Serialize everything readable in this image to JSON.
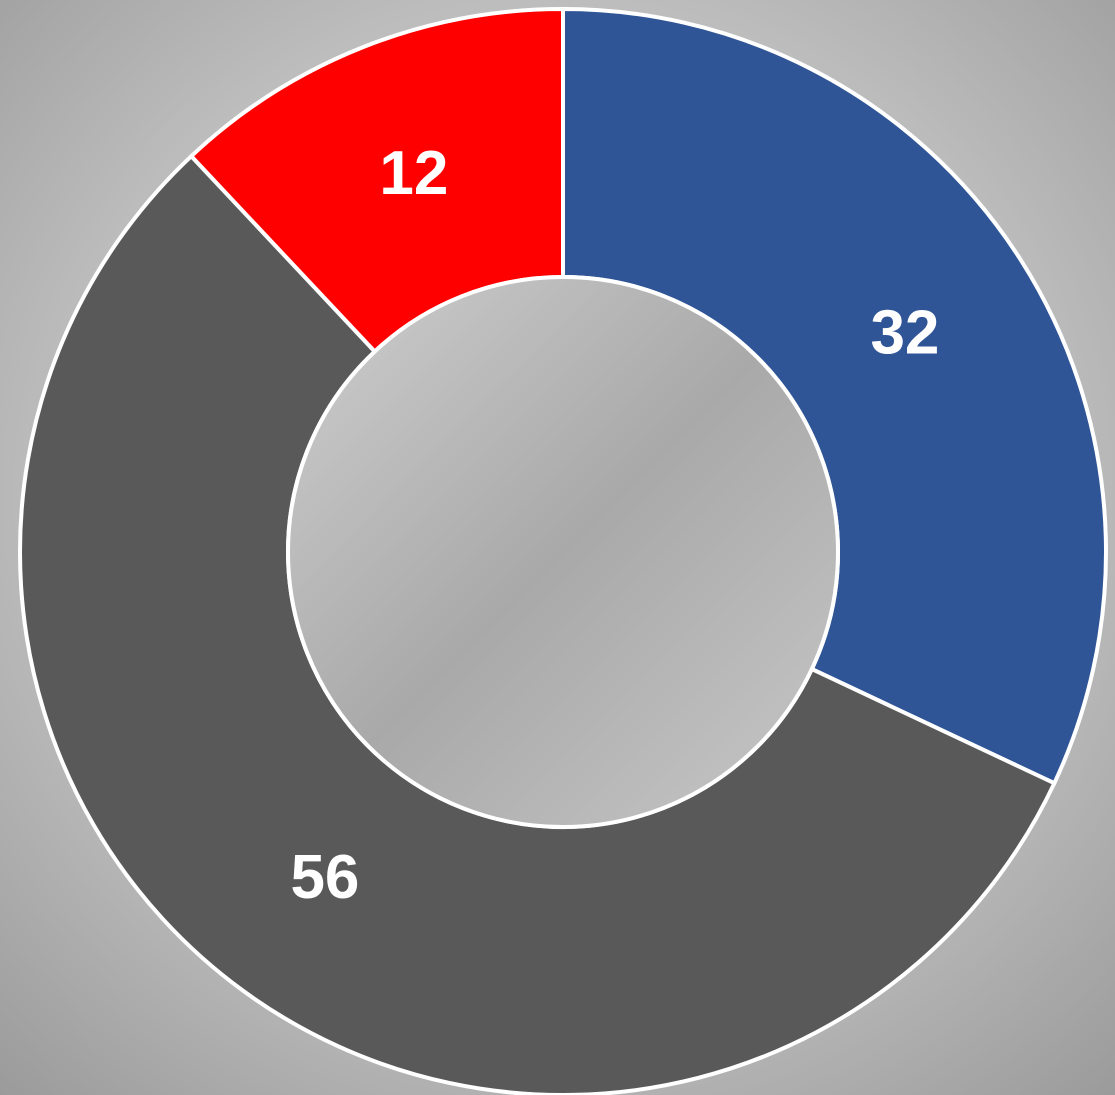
{
  "chart_data": {
    "type": "donut",
    "values": [
      32,
      56,
      12
    ],
    "colors": [
      "#2f5597",
      "#595959",
      "#ff0000"
    ]
  }
}
